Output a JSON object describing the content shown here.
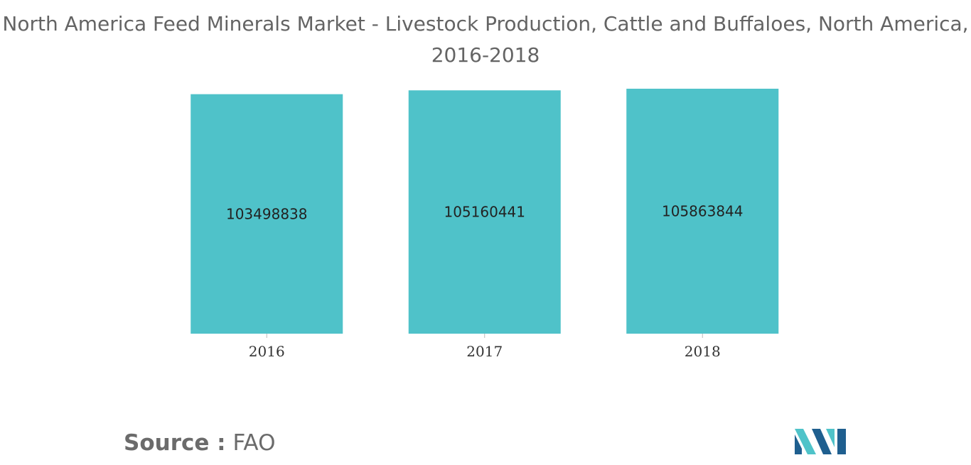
{
  "title": "North America Feed Minerals Market - Livestock Production, Cattle and Buffaloes, North America, 2016-2018",
  "source": {
    "label": "Source :",
    "value": "FAO"
  },
  "logo": {
    "icon": "mordor-intelligence-logo-icon",
    "colors": [
      "#1f5f8f",
      "#4fc3c9"
    ]
  },
  "colors": {
    "bar": "#4fc2c9",
    "title": "#646464",
    "tick_text": "#333333",
    "data_label": "#222222"
  },
  "chart_data": {
    "type": "bar",
    "title": "North America Feed Minerals Market - Livestock Production, Cattle and Buffaloes, North America, 2016-2018",
    "xlabel": "",
    "ylabel": "",
    "categories": [
      "2016",
      "2017",
      "2018"
    ],
    "values": [
      103498838,
      105160441,
      105863844
    ],
    "data_labels": [
      "103498838",
      "105160441",
      "105863844"
    ],
    "ylim": [
      0,
      108000000
    ],
    "grid": false,
    "legend": "none"
  }
}
